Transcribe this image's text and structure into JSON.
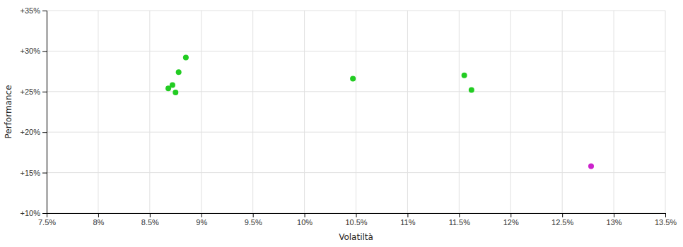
{
  "chart_data": {
    "type": "scatter",
    "xlabel": "Volatiltà",
    "ylabel": "Performance",
    "xlim": [
      0.075,
      0.135
    ],
    "ylim": [
      0.1,
      0.35
    ],
    "xticks": [
      {
        "value": 0.075,
        "label": "7.5%"
      },
      {
        "value": 0.08,
        "label": "8%"
      },
      {
        "value": 0.085,
        "label": "8.5%"
      },
      {
        "value": 0.09,
        "label": "9%"
      },
      {
        "value": 0.095,
        "label": "9.5%"
      },
      {
        "value": 0.1,
        "label": "10%"
      },
      {
        "value": 0.105,
        "label": "10.5%"
      },
      {
        "value": 0.11,
        "label": "11%"
      },
      {
        "value": 0.115,
        "label": "11.5%"
      },
      {
        "value": 0.12,
        "label": "12%"
      },
      {
        "value": 0.125,
        "label": "12.5%"
      },
      {
        "value": 0.13,
        "label": "13%"
      },
      {
        "value": 0.135,
        "label": "13.5%"
      }
    ],
    "yticks": [
      {
        "value": 0.1,
        "label": "+10%"
      },
      {
        "value": 0.15,
        "label": "+15%"
      },
      {
        "value": 0.2,
        "label": "+20%"
      },
      {
        "value": 0.25,
        "label": "+25%"
      },
      {
        "value": 0.3,
        "label": "+30%"
      },
      {
        "value": 0.35,
        "label": "+35%"
      }
    ],
    "grid": true,
    "series": [
      {
        "color": "#22cc22",
        "x": [
          0.0885,
          0.0878,
          0.0872,
          0.0868,
          0.0875,
          0.1047,
          0.1155,
          0.1162
        ],
        "values": [
          0.292,
          0.274,
          0.258,
          0.254,
          0.249,
          0.266,
          0.27,
          0.252
        ]
      },
      {
        "color": "#cc22cc",
        "x": [
          0.1278
        ],
        "values": [
          0.158
        ]
      }
    ]
  }
}
